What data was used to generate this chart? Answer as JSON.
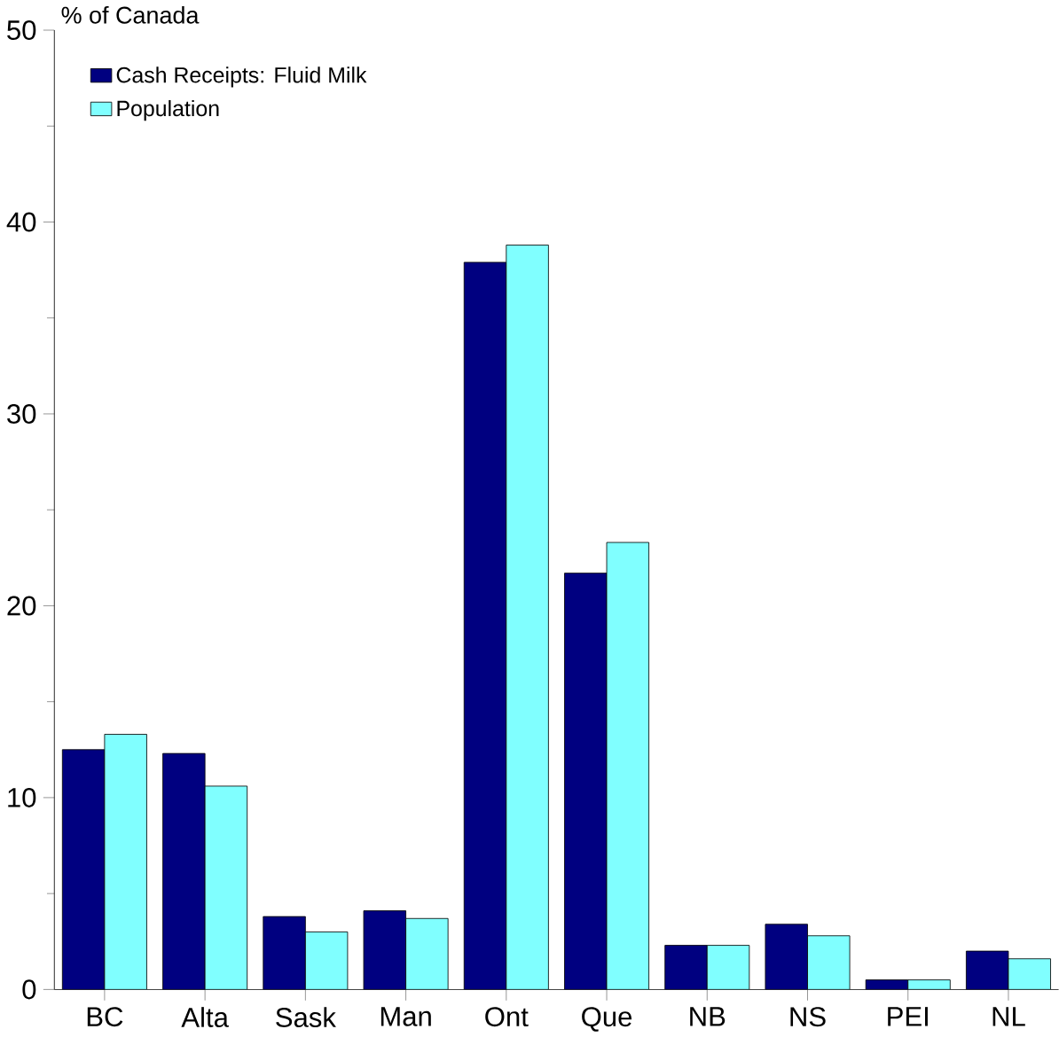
{
  "chart_data": {
    "type": "bar",
    "ylabel": "% of Canada",
    "categories": [
      "BC",
      "Alta",
      "Sask",
      "Man",
      "Ont",
      "Que",
      "NB",
      "NS",
      "PEI",
      "NL"
    ],
    "series": [
      {
        "name": "Cash Receipts: Fluid Milk",
        "color": "#000080",
        "values": [
          12.5,
          12.3,
          3.8,
          4.1,
          37.9,
          21.7,
          2.3,
          3.4,
          0.5,
          2.0
        ]
      },
      {
        "name": "Population",
        "color": "#80ffff",
        "values": [
          13.3,
          10.6,
          3.0,
          3.7,
          38.8,
          23.3,
          2.3,
          2.8,
          0.5,
          1.6
        ]
      }
    ],
    "ylim": [
      0,
      50
    ],
    "yticks": [
      0,
      10,
      20,
      30,
      40,
      50
    ],
    "legend": "top left",
    "grid": false
  }
}
